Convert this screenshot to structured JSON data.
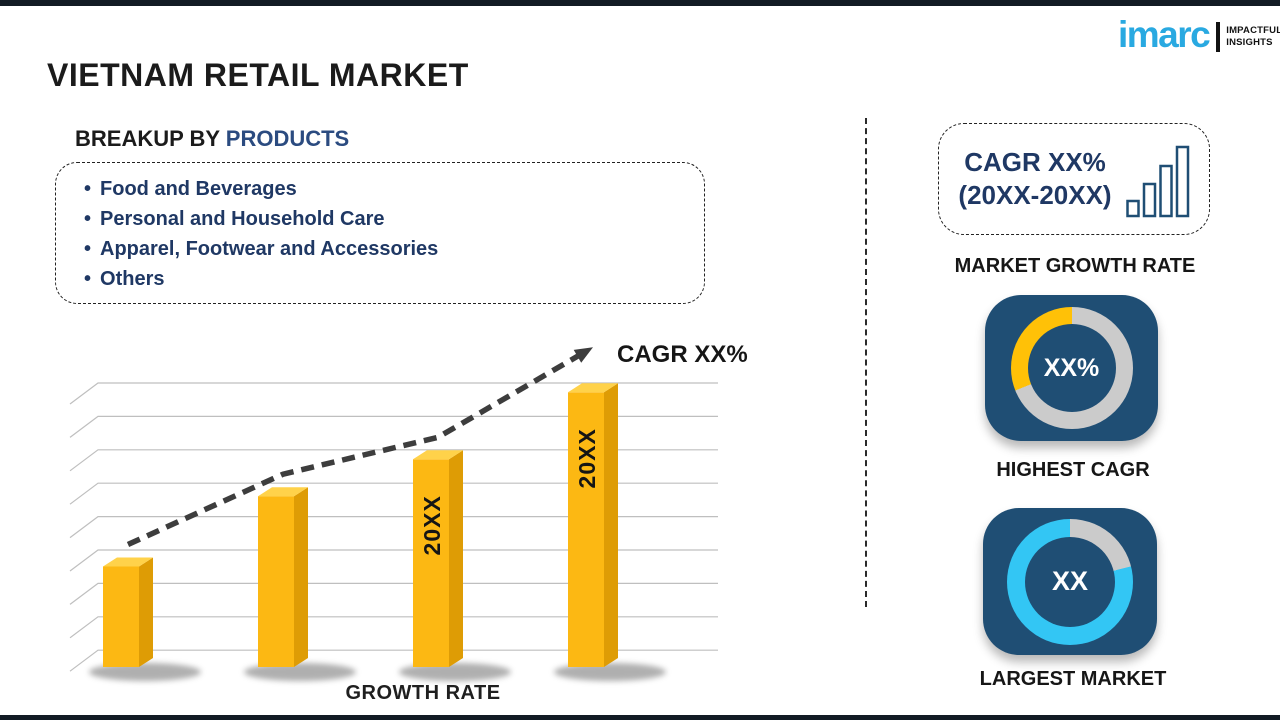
{
  "header": {
    "title": "VIETNAM RETAIL MARKET"
  },
  "logo": {
    "brand": "imarc",
    "tagline_line1": "IMPACTFUL",
    "tagline_line2": "INSIGHTS",
    "brand_color": "#29A9E1"
  },
  "breakup": {
    "heading_prefix": "BREAKUP BY ",
    "heading_highlight": "PRODUCTS",
    "bullet_char": "•",
    "items": [
      "Food and Beverages",
      "Personal and Household Care",
      "Apparel, Footwear and Accessories",
      "Others"
    ]
  },
  "chart_data": {
    "type": "bar",
    "categories": [
      "",
      "",
      "20XX",
      "20XX"
    ],
    "values": [
      30,
      51,
      62,
      82
    ],
    "bar_labels": [
      "",
      "",
      "20XX",
      "20XX"
    ],
    "xlabel": "GROWTH RATE",
    "trend_label": "CAGR XX%",
    "ylim": [
      0,
      100
    ],
    "grid": true,
    "legend": "none",
    "bar_color": "#FCB813",
    "bar_side_color": "#DE9C05",
    "bar_top_color": "#FFD24A",
    "trend_color": "#3D3D3D"
  },
  "sidebar": {
    "cagr_box": {
      "line1": "CAGR XX%",
      "line2": "(20XX-20XX)",
      "icon": "bar-chart-icon"
    },
    "market_growth_label": "MARKET GROWTH RATE",
    "highest_cagr": {
      "value": "XX%",
      "label": "HIGHEST CAGR",
      "fill_percent": 31,
      "fill_color": "#FFC107",
      "track_color": "#CBCBCB",
      "card_color": "#1F4E74"
    },
    "largest_market": {
      "value": "XX",
      "label": "LARGEST MARKET",
      "fill_percent": 79,
      "fill_color": "#33C6F4",
      "track_color": "#CBCBCB",
      "card_color": "#1F4E74"
    }
  }
}
